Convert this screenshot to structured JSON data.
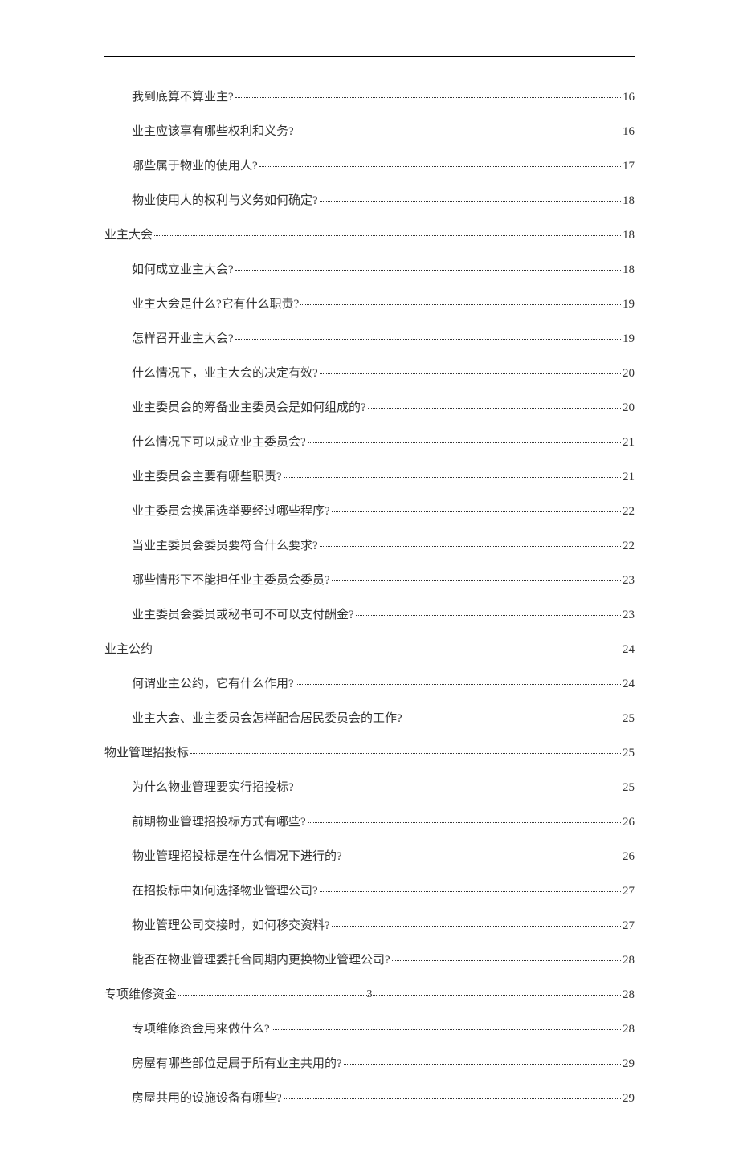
{
  "pageNumber": "3",
  "toc": [
    {
      "indent": 1,
      "label": "我到底算不算业主?",
      "page": "16"
    },
    {
      "indent": 1,
      "label": "业主应该享有哪些权利和义务?",
      "page": "16"
    },
    {
      "indent": 1,
      "label": "哪些属于物业的使用人?",
      "page": "17"
    },
    {
      "indent": 1,
      "label": "物业使用人的权利与义务如何确定?",
      "page": "18"
    },
    {
      "indent": 0,
      "label": "业主大会",
      "page": "18"
    },
    {
      "indent": 1,
      "label": "如何成立业主大会?",
      "page": "18"
    },
    {
      "indent": 1,
      "label": "业主大会是什么?它有什么职责?",
      "page": "19"
    },
    {
      "indent": 1,
      "label": "怎样召开业主大会?",
      "page": "19"
    },
    {
      "indent": 1,
      "label": "什么情况下，业主大会的决定有效?",
      "page": "20"
    },
    {
      "indent": 1,
      "label": "业主委员会的筹备业主委员会是如何组成的?",
      "page": "20"
    },
    {
      "indent": 1,
      "label": "什么情况下可以成立业主委员会?",
      "page": "21"
    },
    {
      "indent": 1,
      "label": "业主委员会主要有哪些职责?",
      "page": "21"
    },
    {
      "indent": 1,
      "label": "业主委员会换届选举要经过哪些程序?",
      "page": "22"
    },
    {
      "indent": 1,
      "label": "当业主委员会委员要符合什么要求?",
      "page": "22"
    },
    {
      "indent": 1,
      "label": "哪些情形下不能担任业主委员会委员?",
      "page": "23"
    },
    {
      "indent": 1,
      "label": "业主委员会委员或秘书可不可以支付酬金?",
      "page": "23"
    },
    {
      "indent": 0,
      "label": "业主公约",
      "page": "24"
    },
    {
      "indent": 1,
      "label": "何谓业主公约，它有什么作用?",
      "page": "24"
    },
    {
      "indent": 1,
      "label": "业主大会、业主委员会怎样配合居民委员会的工作?",
      "page": "25"
    },
    {
      "indent": 0,
      "label": "物业管理招投标",
      "page": "25"
    },
    {
      "indent": 1,
      "label": "为什么物业管理要实行招投标?",
      "page": "25"
    },
    {
      "indent": 1,
      "label": "前期物业管理招投标方式有哪些?",
      "page": "26"
    },
    {
      "indent": 1,
      "label": "物业管理招投标是在什么情况下进行的?",
      "page": "26"
    },
    {
      "indent": 1,
      "label": "在招投标中如何选择物业管理公司?",
      "page": "27"
    },
    {
      "indent": 1,
      "label": "物业管理公司交接时，如何移交资料?",
      "page": "27"
    },
    {
      "indent": 1,
      "label": "能否在物业管理委托合同期内更换物业管理公司?",
      "page": "28"
    },
    {
      "indent": 0,
      "label": "专项维修资金",
      "page": "28"
    },
    {
      "indent": 1,
      "label": "专项维修资金用来做什么?",
      "page": "28"
    },
    {
      "indent": 1,
      "label": "房屋有哪些部位是属于所有业主共用的?",
      "page": "29"
    },
    {
      "indent": 1,
      "label": "房屋共用的设施设备有哪些?",
      "page": "29"
    }
  ]
}
